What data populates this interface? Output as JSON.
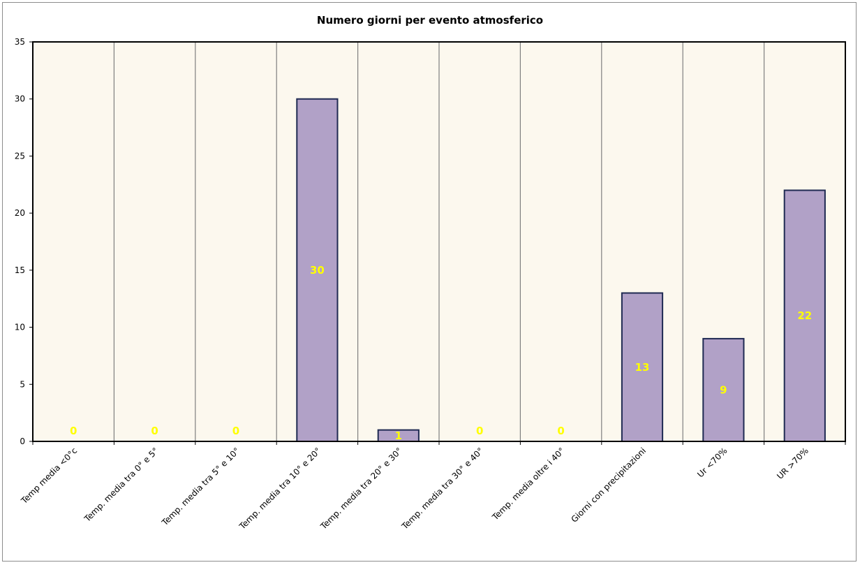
{
  "chart_data": {
    "type": "bar",
    "title": "Numero giorni  per evento atmosferico",
    "xlabel": "",
    "ylabel": "",
    "categories": [
      "Temp media <0°c",
      "Temp. media tra 0° e 5°",
      "Temp. media tra 5° e 10°",
      "Temp. media tra 10° e 20°",
      "Temp. media tra 20° e 30°",
      "Temp. media tra 30° e 40°",
      "Temp. media oltre i 40°",
      "Giorni con precipitazioni",
      "Ur  <70%",
      "UR >70%"
    ],
    "values": [
      0,
      0,
      0,
      30,
      1,
      0,
      0,
      13,
      9,
      22
    ],
    "ylim": [
      0,
      35
    ],
    "yticks": [
      0,
      5,
      10,
      15,
      20,
      25,
      30,
      35
    ],
    "grid": "vertical",
    "legend": "none",
    "colors": {
      "plot_background": "#fcf8ee",
      "bar_fill": "#b1a1c7",
      "bar_stroke": "#1f2a52",
      "gridline": "#7f7f7f",
      "data_label": "#ffff00"
    }
  }
}
